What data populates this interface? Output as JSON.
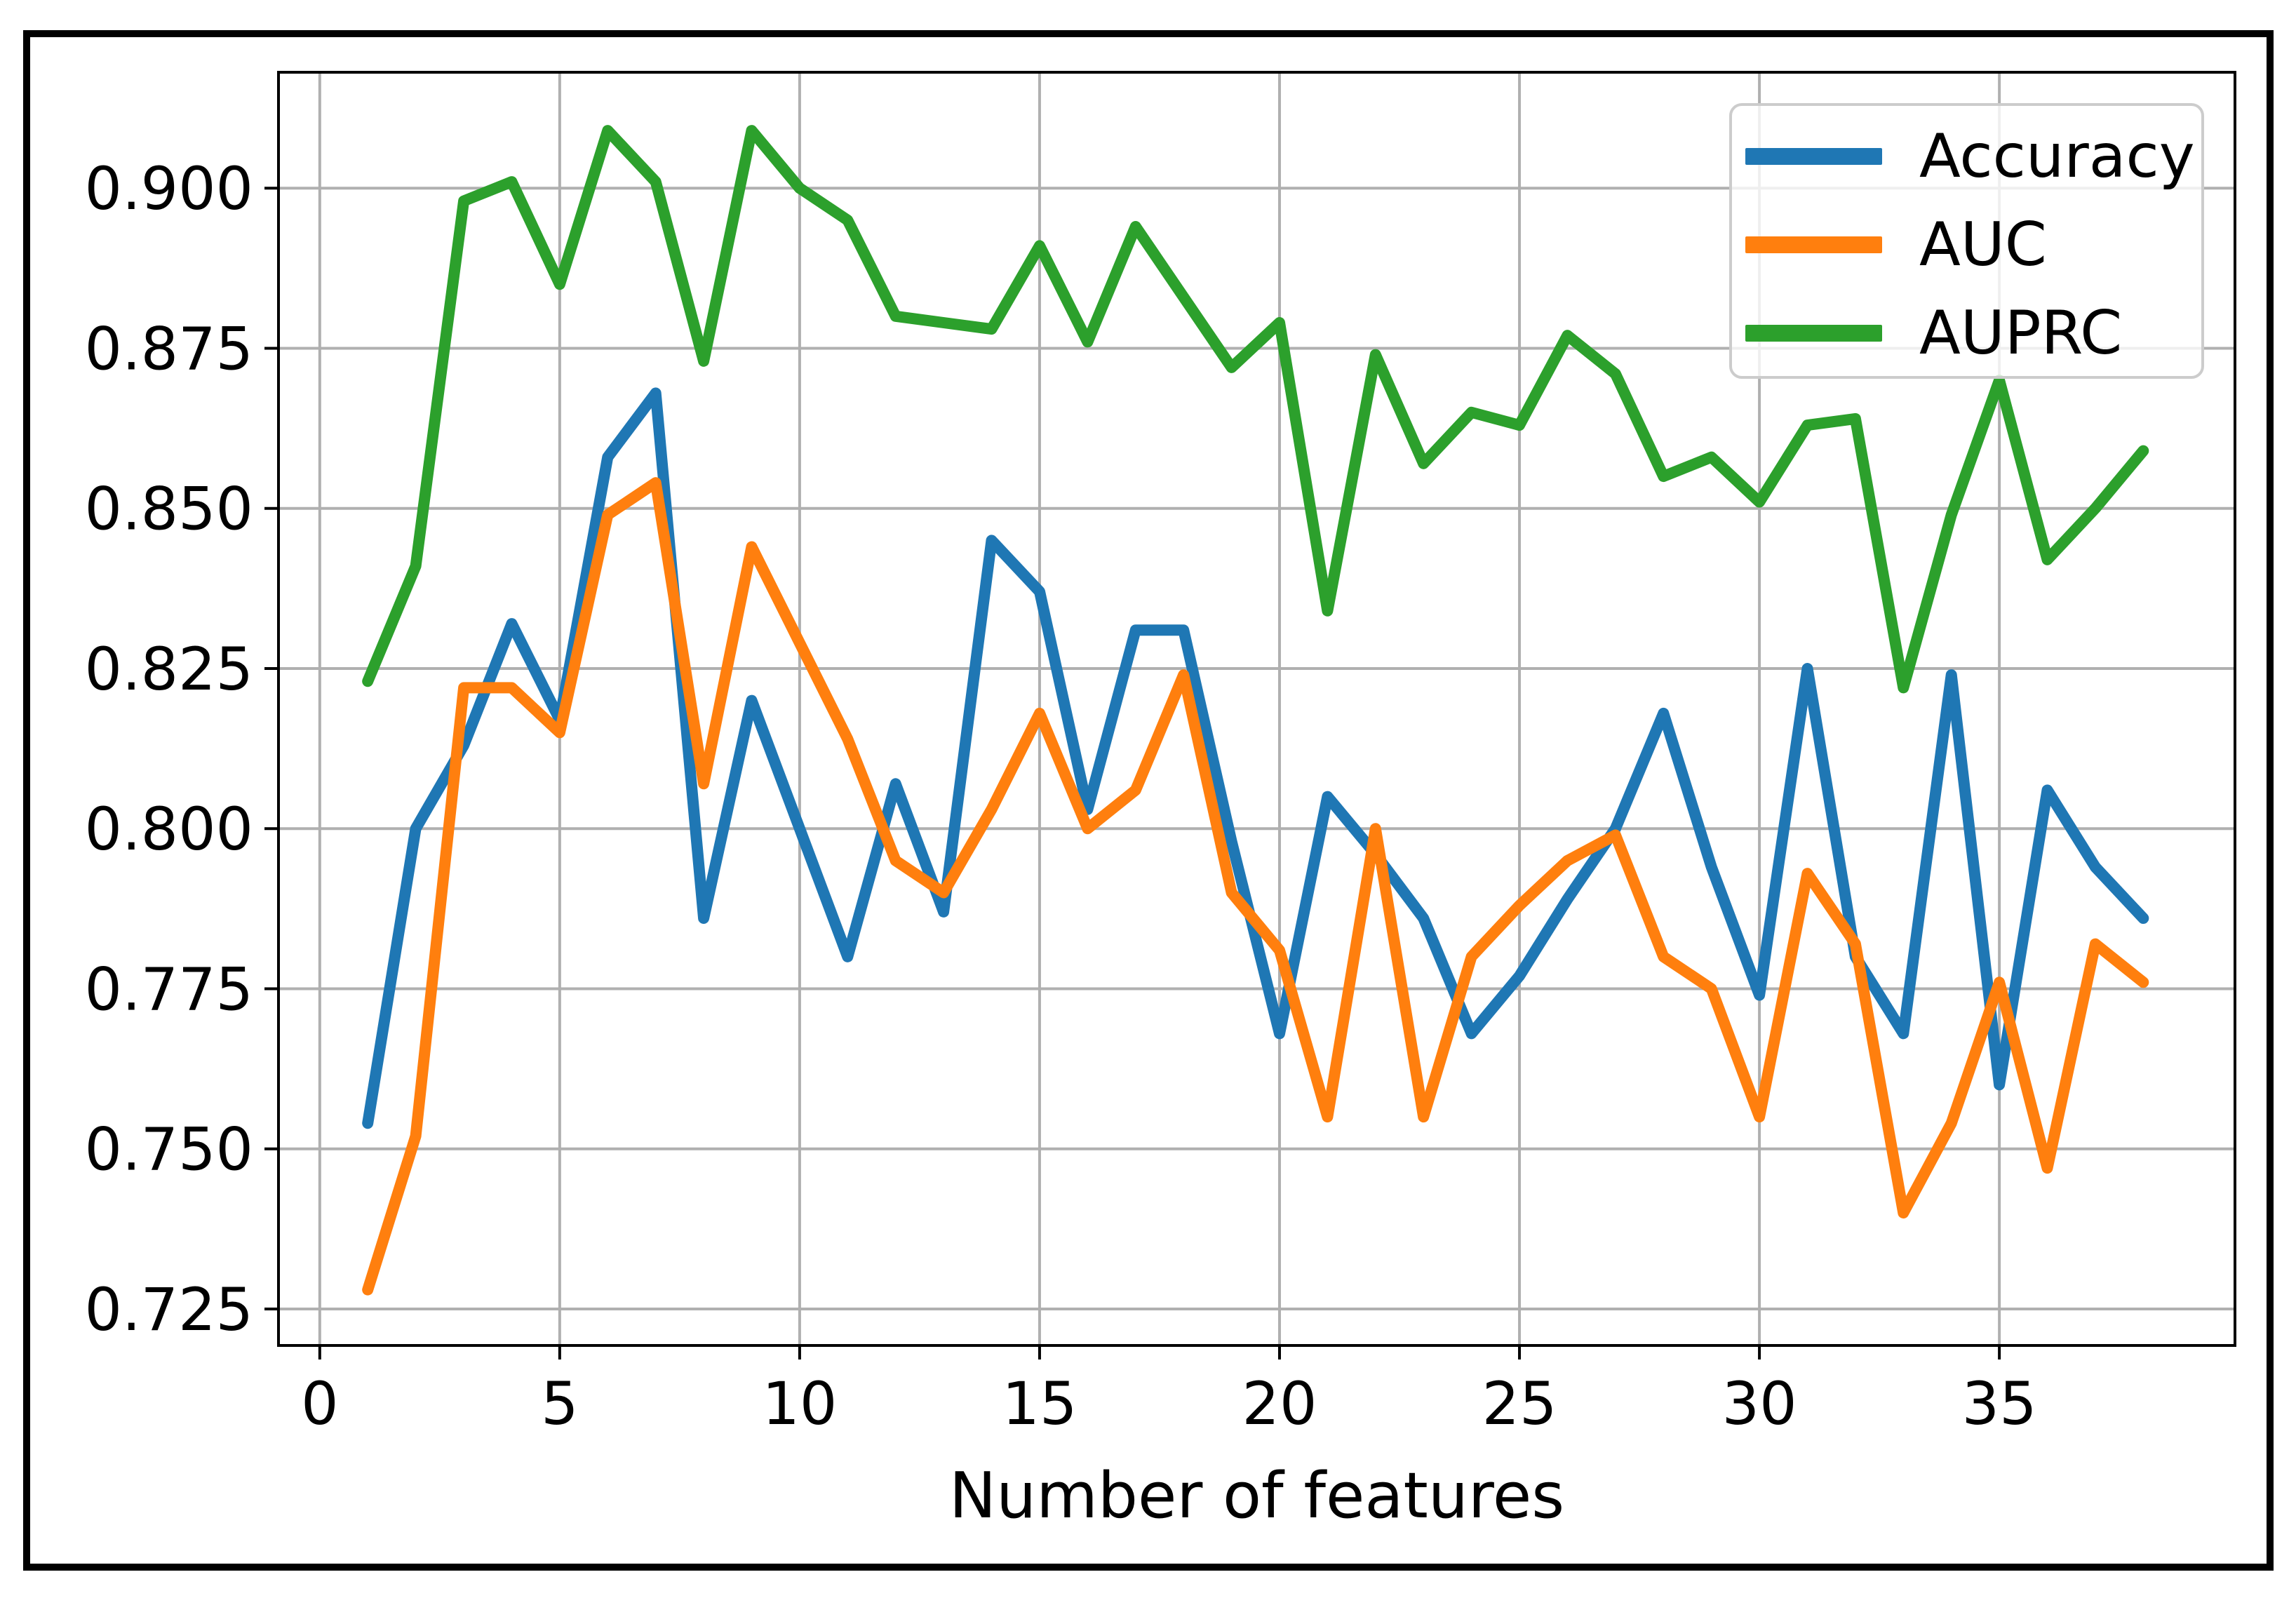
{
  "chart_data": {
    "type": "line",
    "title": "",
    "xlabel": "Number of features",
    "ylabel": "",
    "x": [
      1,
      2,
      3,
      4,
      5,
      6,
      7,
      8,
      9,
      10,
      11,
      12,
      13,
      14,
      15,
      16,
      17,
      18,
      19,
      20,
      21,
      22,
      23,
      24,
      25,
      26,
      27,
      28,
      29,
      30,
      31,
      32,
      33,
      34,
      35,
      36,
      37,
      38
    ],
    "series": [
      {
        "name": "Accuracy",
        "color": "#1f77b4",
        "values": [
          0.754,
          0.8,
          0.813,
          0.832,
          0.817,
          0.858,
          0.868,
          0.786,
          0.82,
          0.8,
          0.78,
          0.807,
          0.787,
          0.845,
          0.837,
          0.803,
          0.831,
          0.831,
          0.798,
          0.768,
          0.805,
          0.796,
          0.786,
          0.768,
          0.777,
          0.789,
          0.8,
          0.818,
          0.794,
          0.774,
          0.825,
          0.78,
          0.768,
          0.824,
          0.76,
          0.806,
          0.794,
          0.786
        ]
      },
      {
        "name": "AUC",
        "color": "#ff7f0e",
        "values": [
          0.728,
          0.752,
          0.822,
          0.822,
          0.815,
          0.849,
          0.854,
          0.807,
          0.844,
          0.829,
          0.814,
          0.795,
          0.79,
          0.803,
          0.818,
          0.8,
          0.806,
          0.824,
          0.79,
          0.781,
          0.755,
          0.8,
          0.755,
          0.78,
          0.788,
          0.795,
          0.799,
          0.78,
          0.775,
          0.755,
          0.793,
          0.782,
          0.74,
          0.754,
          0.776,
          0.747,
          0.782,
          0.776
        ]
      },
      {
        "name": "AUPRC",
        "color": "#2ca02c",
        "values": [
          0.823,
          0.841,
          0.898,
          0.901,
          0.885,
          0.909,
          0.901,
          0.873,
          0.909,
          0.9,
          0.895,
          0.88,
          0.879,
          0.878,
          0.891,
          0.876,
          0.894,
          0.883,
          0.872,
          0.879,
          0.834,
          0.874,
          0.857,
          0.865,
          0.863,
          0.877,
          0.871,
          0.855,
          0.858,
          0.851,
          0.863,
          0.864,
          0.822,
          0.849,
          0.87,
          0.842,
          0.85,
          0.859
        ]
      }
    ],
    "xlim": [
      -0.86,
      39.91
    ],
    "ylim": [
      0.7193,
      0.9181
    ],
    "xticks": [
      "0",
      "5",
      "10",
      "15",
      "20",
      "25",
      "30",
      "35"
    ],
    "xtick_values": [
      0,
      5,
      10,
      15,
      20,
      25,
      30,
      35
    ],
    "yticks": [
      "0.725",
      "0.750",
      "0.775",
      "0.800",
      "0.825",
      "0.850",
      "0.875",
      "0.900"
    ],
    "ytick_values": [
      0.725,
      0.75,
      0.775,
      0.8,
      0.825,
      0.85,
      0.875,
      0.9
    ],
    "grid": true,
    "legend_position": "upper right",
    "line_width": 16
  },
  "style": {
    "grid_color": "#b0b0b0",
    "spine_color": "#000000",
    "tick_color": "#000000",
    "text_color": "#000000",
    "figure_border_color": "#000000",
    "background": "#ffffff",
    "tick_font_size": 84
  }
}
